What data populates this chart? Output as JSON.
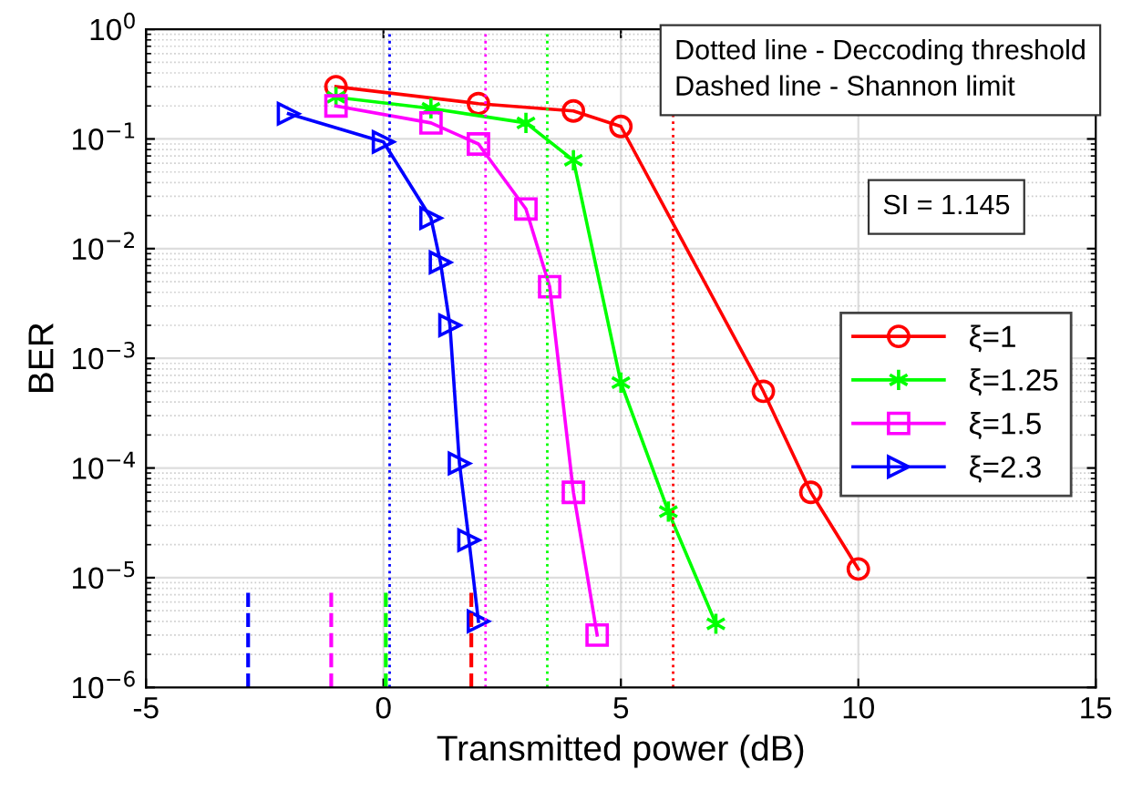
{
  "chart_data": {
    "type": "line",
    "xlabel": "Transmitted power (dB)",
    "ylabel": "BER",
    "log": "y",
    "xlim": [
      -5,
      15
    ],
    "xticks": [
      -5,
      0,
      5,
      10,
      15
    ],
    "ylim": [
      1e-06,
      1
    ],
    "yticks": [
      {
        "value": 1e-06,
        "label": "10$^{−6}$"
      },
      {
        "value": 1e-05,
        "label": "10$^{−5}$"
      },
      {
        "value": 0.0001,
        "label": "10$^{−4}$"
      },
      {
        "value": 0.001,
        "label": "10$^{−3}$"
      },
      {
        "value": 0.01,
        "label": "10$^{−2}$"
      },
      {
        "value": 0.1,
        "label": "10$^{−1}$"
      },
      {
        "value": 1,
        "label": "10$^{0}$"
      }
    ],
    "grid": true,
    "legend": "right",
    "line_style": "solid",
    "series": [
      {
        "name": "ξ=1",
        "color": "#ff0000",
        "marker": "circle",
        "x": [
          -1,
          2,
          4,
          5,
          8,
          9,
          10
        ],
        "values": [
          0.3,
          0.21,
          0.18,
          0.13,
          0.0005,
          6e-05,
          1.2e-05
        ]
      },
      {
        "name": "ξ=1.25",
        "color": "#00ff00",
        "marker": "cross",
        "x": [
          -1,
          1,
          3,
          4,
          5,
          6,
          7
        ],
        "values": [
          0.24,
          0.19,
          0.14,
          0.064,
          0.0006,
          4e-05,
          3.8e-06
        ]
      },
      {
        "name": "ξ=1.5",
        "color": "#ff00ff",
        "marker": "square",
        "x": [
          -1,
          1,
          2,
          3,
          3.5,
          4,
          4.5
        ],
        "values": [
          0.2,
          0.14,
          0.09,
          0.023,
          0.0045,
          6e-05,
          3e-06
        ]
      },
      {
        "name": "ξ=2.3",
        "color": "#0000ff",
        "marker": "triangle",
        "x": [
          -2,
          0,
          1,
          1.2,
          1.4,
          1.6,
          1.8,
          2
        ],
        "values": [
          0.17,
          0.094,
          0.019,
          0.0075,
          0.002,
          0.00011,
          2.2e-05,
          4e-06
        ]
      }
    ],
    "ref_lines": [
      {
        "axis": "x",
        "value": 6.1,
        "color": "#ff0000",
        "line_style": "dotted"
      },
      {
        "axis": "x",
        "value": 3.45,
        "color": "#00ff00",
        "line_style": "dotted"
      },
      {
        "axis": "x",
        "value": 2.15,
        "color": "#ff00ff",
        "line_style": "dotted"
      },
      {
        "axis": "x",
        "value": 0.13,
        "color": "#0000ff",
        "line_style": "dotted"
      },
      {
        "axis": "x",
        "value": 1.85,
        "color": "#ff0000",
        "line_style": "dashed"
      },
      {
        "axis": "x",
        "value": 0.05,
        "color": "#00ff00",
        "line_style": "dashed"
      },
      {
        "axis": "x",
        "value": -1.1,
        "color": "#ff00ff",
        "line_style": "dashed"
      },
      {
        "axis": "x",
        "value": -2.85,
        "color": "#0000ff",
        "line_style": "dashed"
      }
    ],
    "annotations": [
      "Dotted line - Deccoding threshold\nDashed line - Shannon limit",
      "SI = 1.145"
    ]
  }
}
